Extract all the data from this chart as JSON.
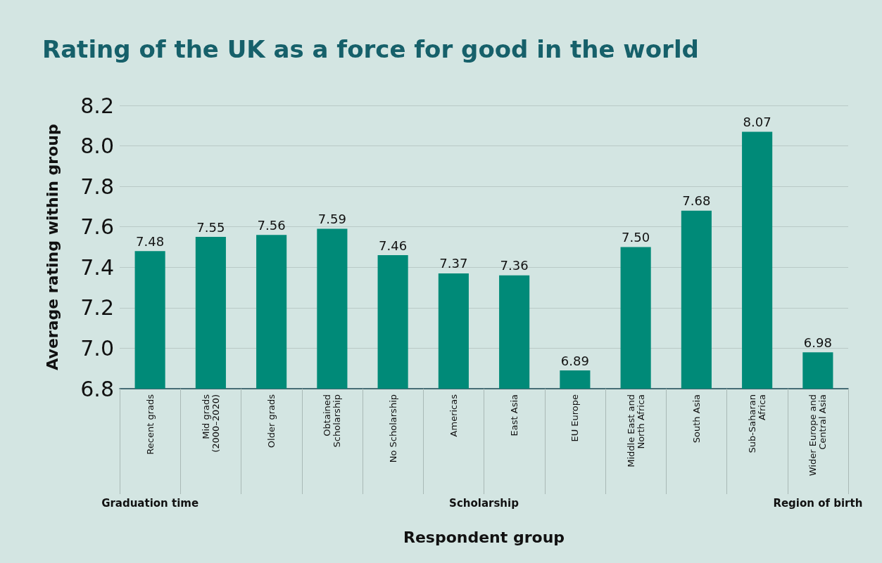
{
  "chart_data": {
    "type": "bar",
    "title": "Rating of the UK as a force for good in the world",
    "xlabel": "Respondent group",
    "ylabel": "Average rating within group",
    "categories": [
      "Recent grads",
      "Mid grads\n(2000–2020)",
      "Older grads",
      "Obtained\nScholarship",
      "No Scholarship",
      "Americas",
      "East Asia",
      "EU Europe",
      "Middle East and\nNorth Africa",
      "South Asia",
      "Sub-Saharan\nAfrica",
      "Wider Europe and\nCentral Asia"
    ],
    "values": [
      7.48,
      7.55,
      7.56,
      7.59,
      7.46,
      7.37,
      7.36,
      6.89,
      7.5,
      7.68,
      8.07,
      6.98
    ],
    "value_labels": [
      "7.48",
      "7.55",
      "7.56",
      "7.59",
      "7.46",
      "7.37",
      "7.36",
      "6.89",
      "7.50",
      "7.68",
      "8.07",
      "6.98"
    ],
    "color": "#008a78",
    "ylim": [
      6.8,
      8.2
    ],
    "yticks": [
      6.8,
      {
        "value": 7.0,
        "label": "7.0"
      },
      7.2,
      7.4,
      7.6,
      7.8,
      {
        "value": 8.0,
        "label": "8.0"
      },
      8.2
    ],
    "grid": "y",
    "annotations": [
      "Graduation time",
      "Scholarship",
      "Region of birth"
    ]
  }
}
